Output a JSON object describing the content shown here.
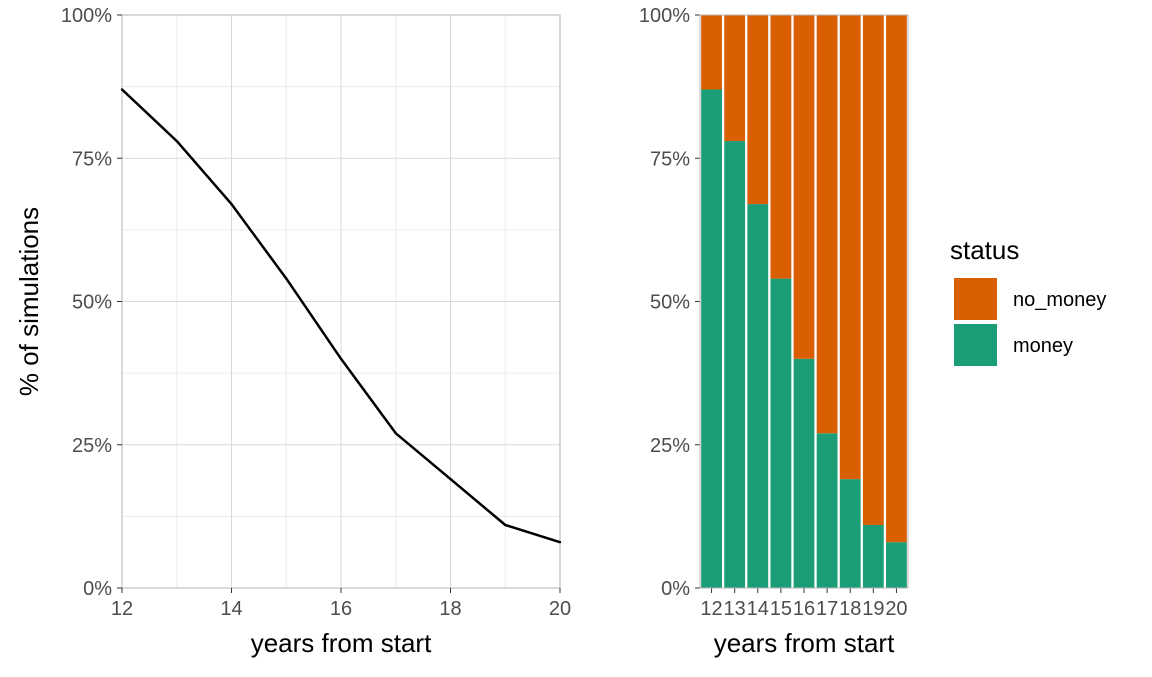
{
  "chart_data": [
    {
      "type": "line",
      "panel": "left",
      "xlabel": "years from start",
      "ylabel": "% of simulations",
      "xlim": [
        12,
        20
      ],
      "ylim": [
        0,
        1
      ],
      "x_ticks": [
        12,
        14,
        16,
        18,
        20
      ],
      "y_ticks": [
        "0%",
        "25%",
        "50%",
        "75%",
        "100%"
      ],
      "grid": true,
      "line_color": "#000000",
      "series": [
        {
          "x": [
            12,
            13,
            14,
            15,
            16,
            17,
            18,
            19,
            20
          ],
          "y": [
            0.87,
            0.78,
            0.67,
            0.54,
            0.4,
            0.27,
            0.19,
            0.11,
            0.08
          ]
        }
      ]
    },
    {
      "type": "bar",
      "panel": "right",
      "stacked": true,
      "xlabel": "years from start",
      "ylabel": "",
      "ylim": [
        0,
        1
      ],
      "y_ticks": [
        "0%",
        "25%",
        "50%",
        "75%",
        "100%"
      ],
      "categories": [
        "12",
        "13",
        "14",
        "15",
        "16",
        "17",
        "18",
        "19",
        "20"
      ],
      "series": [
        {
          "name": "money",
          "color": "#1b9e77",
          "values": [
            0.87,
            0.78,
            0.67,
            0.54,
            0.4,
            0.27,
            0.19,
            0.11,
            0.08
          ]
        },
        {
          "name": "no_money",
          "color": "#d95f02",
          "values": [
            0.13,
            0.22,
            0.33,
            0.46,
            0.6,
            0.73,
            0.81,
            0.89,
            0.92
          ]
        }
      ],
      "legend": {
        "title": "status",
        "position": "right",
        "items": [
          {
            "label": "no_money",
            "color": "#d95f02"
          },
          {
            "label": "money",
            "color": "#1b9e77"
          }
        ]
      }
    }
  ]
}
